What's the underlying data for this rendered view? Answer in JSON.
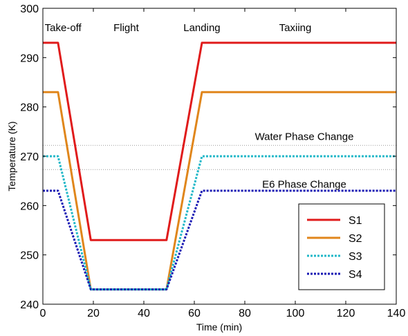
{
  "chart_data": {
    "type": "line",
    "title": "",
    "xlabel": "Time (min)",
    "ylabel": "Temperature (K)",
    "xlim": [
      0,
      140
    ],
    "ylim": [
      240,
      300
    ],
    "xticks": [
      0,
      20,
      40,
      60,
      80,
      100,
      120,
      140
    ],
    "yticks": [
      240,
      250,
      260,
      270,
      280,
      290,
      300
    ],
    "grid": false,
    "legend_position": "lower-right",
    "phase_labels": [
      {
        "text": "Take-off",
        "x": 8
      },
      {
        "text": "Flight",
        "x": 33
      },
      {
        "text": "Landing",
        "x": 63
      },
      {
        "text": "Taxiing",
        "x": 100
      }
    ],
    "reference_lines": [
      {
        "label": "Water Phase Change",
        "y": 272.2,
        "color": "#999999"
      },
      {
        "label": "E6 Phase Change",
        "y": 267.3,
        "color": "#999999"
      }
    ],
    "series": [
      {
        "name": "S1",
        "color": "#e01b1b",
        "dash": "solid",
        "x": [
          0,
          6,
          19,
          49,
          63,
          140
        ],
        "y": [
          293,
          293,
          253,
          253,
          293,
          293
        ]
      },
      {
        "name": "S2",
        "color": "#e0861b",
        "dash": "solid",
        "x": [
          0,
          6,
          19,
          49,
          63,
          140
        ],
        "y": [
          283,
          283,
          243,
          243,
          283,
          283
        ]
      },
      {
        "name": "S3",
        "color": "#22b8c8",
        "dash": "dashed",
        "x": [
          0,
          6,
          19,
          49,
          63,
          140
        ],
        "y": [
          270,
          270,
          243,
          243,
          270,
          270
        ]
      },
      {
        "name": "S4",
        "color": "#1a1ab4",
        "dash": "dashed",
        "x": [
          0,
          6,
          19,
          49,
          63,
          140
        ],
        "y": [
          263,
          263,
          243,
          243,
          263,
          263
        ]
      }
    ]
  }
}
